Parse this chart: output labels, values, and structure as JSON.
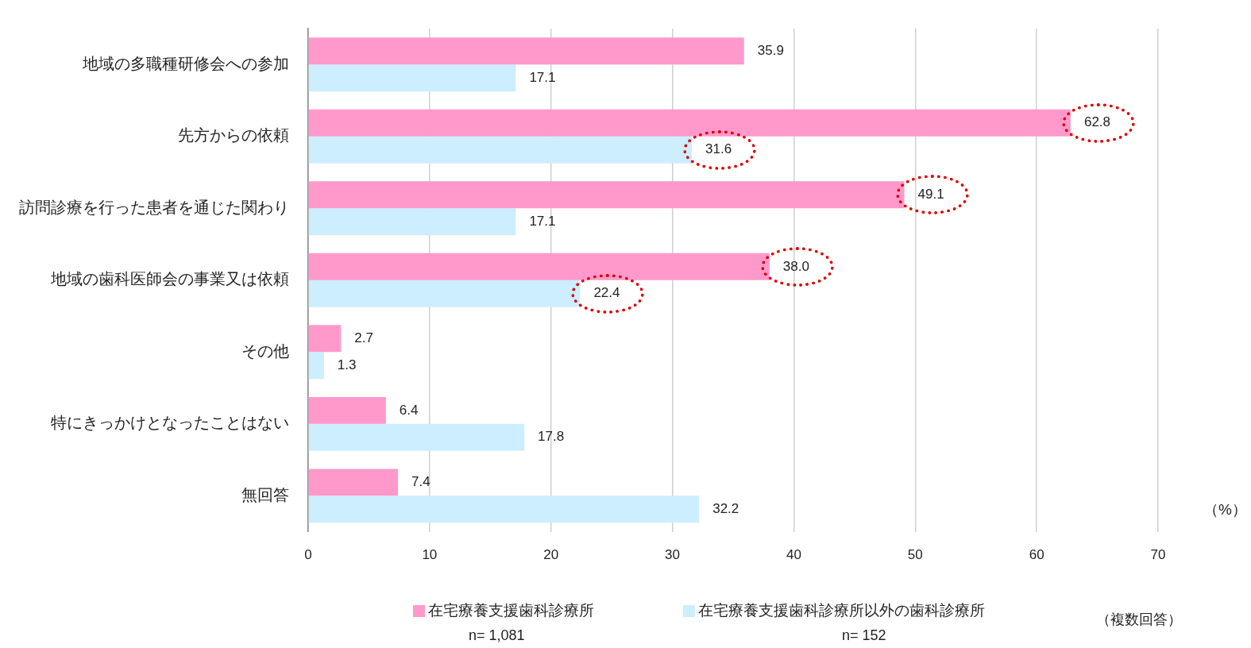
{
  "chart_data": {
    "type": "bar",
    "orientation": "horizontal",
    "categories": [
      "地域の多職種研修会への参加",
      "先方からの依頼",
      "訪問診療を行った患者を通じた関わり",
      "地域の歯科医師会の事業又は依頼",
      "その他",
      "特にきっかけとなったことはない",
      "無回答"
    ],
    "series": [
      {
        "name": "在宅療養支援歯科診療所",
        "color": "#ff99cc",
        "values": [
          35.9,
          62.8,
          49.1,
          38.0,
          2.7,
          6.4,
          7.4
        ],
        "value_labels": [
          "35.9",
          "62.8",
          "49.1",
          "38.0",
          "2.7",
          "6.4",
          "7.4"
        ]
      },
      {
        "name": "在宅療養支援歯科診療所以外の歯科診療所",
        "color": "#cceeff",
        "values": [
          17.1,
          31.6,
          17.1,
          22.4,
          1.3,
          17.8,
          32.2
        ],
        "value_labels": [
          "17.1",
          "31.6",
          "17.1",
          "22.4",
          "1.3",
          "17.8",
          "32.2"
        ]
      }
    ],
    "xlim": [
      0,
      70
    ],
    "xticks": [
      0,
      10,
      20,
      30,
      40,
      50,
      60,
      70
    ],
    "xlabel": "（%）",
    "grid": "x",
    "legend": "bottom",
    "annotations": [
      "n= 1,081",
      "n= 152",
      "（複数回答）"
    ]
  }
}
